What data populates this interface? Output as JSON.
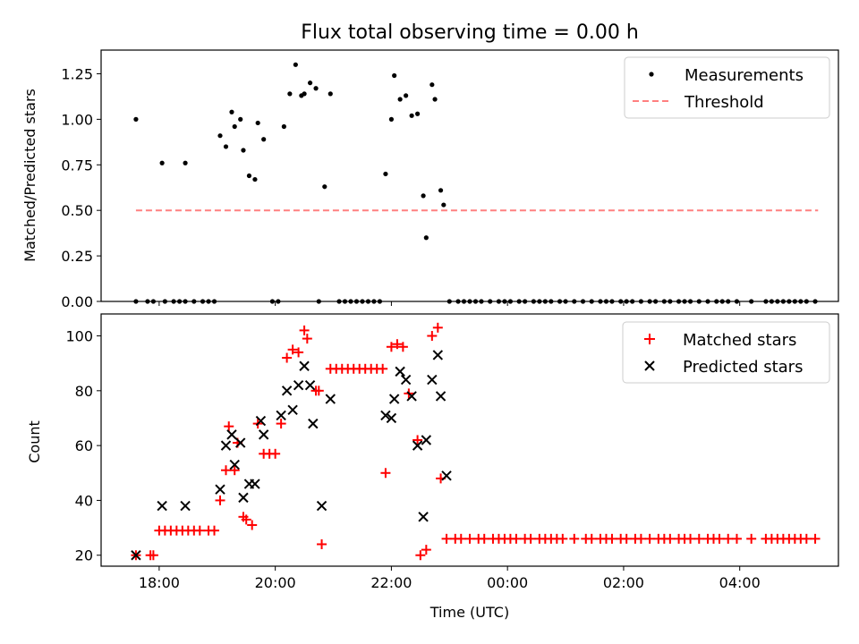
{
  "chart_data": [
    {
      "type": "scatter",
      "title": "Flux total observing time = 0.00 h",
      "xlabel": "",
      "ylabel": "Matched/Predicted stars",
      "xlim": [
        17.0,
        29.7
      ],
      "ylim": [
        0.0,
        1.38
      ],
      "yticks": [
        0.0,
        0.25,
        0.5,
        0.75,
        1.0,
        1.25
      ],
      "ytick_labels": [
        "0.00",
        "0.25",
        "0.50",
        "0.75",
        "1.00",
        "1.25"
      ],
      "series": [
        {
          "name": "Measurements",
          "color": "#000000",
          "points": [
            [
              17.6,
              1.0
            ],
            [
              17.6,
              0.0
            ],
            [
              17.8,
              0.0
            ],
            [
              17.9,
              0.0
            ],
            [
              18.05,
              0.76
            ],
            [
              18.1,
              0.0
            ],
            [
              18.25,
              0.0
            ],
            [
              18.35,
              0.0
            ],
            [
              18.45,
              0.0
            ],
            [
              18.45,
              0.76
            ],
            [
              18.6,
              0.0
            ],
            [
              18.75,
              0.0
            ],
            [
              18.85,
              0.0
            ],
            [
              18.95,
              0.0
            ],
            [
              19.05,
              0.91
            ],
            [
              19.15,
              0.85
            ],
            [
              19.25,
              1.04
            ],
            [
              19.3,
              0.96
            ],
            [
              19.4,
              1.0
            ],
            [
              19.45,
              0.83
            ],
            [
              19.55,
              0.69
            ],
            [
              19.65,
              0.67
            ],
            [
              19.7,
              0.98
            ],
            [
              19.8,
              0.89
            ],
            [
              19.95,
              0.0
            ],
            [
              20.05,
              0.0
            ],
            [
              20.15,
              0.96
            ],
            [
              20.25,
              1.14
            ],
            [
              20.35,
              1.3
            ],
            [
              20.45,
              1.13
            ],
            [
              20.5,
              1.14
            ],
            [
              20.6,
              1.2
            ],
            [
              20.7,
              1.17
            ],
            [
              20.75,
              0.0
            ],
            [
              20.85,
              0.63
            ],
            [
              20.95,
              1.14
            ],
            [
              21.1,
              0.0
            ],
            [
              21.2,
              0.0
            ],
            [
              21.3,
              0.0
            ],
            [
              21.4,
              0.0
            ],
            [
              21.5,
              0.0
            ],
            [
              21.6,
              0.0
            ],
            [
              21.7,
              0.0
            ],
            [
              21.8,
              0.0
            ],
            [
              21.9,
              0.7
            ],
            [
              22.0,
              1.0
            ],
            [
              22.05,
              1.24
            ],
            [
              22.15,
              1.11
            ],
            [
              22.25,
              1.13
            ],
            [
              22.35,
              1.02
            ],
            [
              22.45,
              1.03
            ],
            [
              22.55,
              0.58
            ],
            [
              22.6,
              0.35
            ],
            [
              22.7,
              1.19
            ],
            [
              22.75,
              1.11
            ],
            [
              22.85,
              0.61
            ],
            [
              22.9,
              0.53
            ],
            [
              23.0,
              0.0
            ],
            [
              23.15,
              0.0
            ],
            [
              23.25,
              0.0
            ],
            [
              23.35,
              0.0
            ],
            [
              23.45,
              0.0
            ],
            [
              23.55,
              0.0
            ],
            [
              23.7,
              0.0
            ],
            [
              23.85,
              0.0
            ],
            [
              23.95,
              0.0
            ],
            [
              24.05,
              0.0
            ],
            [
              24.2,
              0.0
            ],
            [
              24.3,
              0.0
            ],
            [
              24.45,
              0.0
            ],
            [
              24.55,
              0.0
            ],
            [
              24.65,
              0.0
            ],
            [
              24.75,
              0.0
            ],
            [
              24.9,
              0.0
            ],
            [
              25.0,
              0.0
            ],
            [
              25.15,
              0.0
            ],
            [
              25.3,
              0.0
            ],
            [
              25.45,
              0.0
            ],
            [
              25.6,
              0.0
            ],
            [
              25.7,
              0.0
            ],
            [
              25.8,
              0.0
            ],
            [
              25.95,
              0.0
            ],
            [
              26.05,
              0.0
            ],
            [
              26.15,
              0.0
            ],
            [
              26.3,
              0.0
            ],
            [
              26.45,
              0.0
            ],
            [
              26.55,
              0.0
            ],
            [
              26.7,
              0.0
            ],
            [
              26.8,
              0.0
            ],
            [
              26.95,
              0.0
            ],
            [
              27.05,
              0.0
            ],
            [
              27.15,
              0.0
            ],
            [
              27.3,
              0.0
            ],
            [
              27.45,
              0.0
            ],
            [
              27.6,
              0.0
            ],
            [
              27.7,
              0.0
            ],
            [
              27.8,
              0.0
            ],
            [
              27.95,
              0.0
            ],
            [
              28.2,
              0.0
            ],
            [
              28.45,
              0.0
            ],
            [
              28.55,
              0.0
            ],
            [
              28.65,
              0.0
            ],
            [
              28.75,
              0.0
            ],
            [
              28.85,
              0.0
            ],
            [
              28.95,
              0.0
            ],
            [
              29.05,
              0.0
            ],
            [
              29.15,
              0.0
            ],
            [
              29.3,
              0.0
            ]
          ]
        },
        {
          "name": "Threshold",
          "color": "#ff8080",
          "style": "dashed",
          "x": [
            17.6,
            29.35
          ],
          "y": [
            0.5,
            0.5
          ]
        }
      ],
      "legend": "top-right"
    },
    {
      "type": "scatter",
      "title": "",
      "xlabel": "Time (UTC)",
      "ylabel": "Count",
      "xlim": [
        17.0,
        29.7
      ],
      "ylim": [
        16.0,
        108.0
      ],
      "yticks": [
        20,
        40,
        60,
        80,
        100
      ],
      "ytick_labels": [
        "20",
        "40",
        "60",
        "80",
        "100"
      ],
      "xticks": [
        18,
        20,
        22,
        24,
        26,
        28
      ],
      "xtick_labels": [
        "18:00",
        "20:00",
        "22:00",
        "00:00",
        "02:00",
        "04:00"
      ],
      "series": [
        {
          "name": "Matched stars",
          "color": "#ff0000",
          "marker": "plus",
          "points": [
            [
              17.6,
              20
            ],
            [
              17.85,
              20
            ],
            [
              17.9,
              20
            ],
            [
              18.0,
              29
            ],
            [
              18.1,
              29
            ],
            [
              18.2,
              29
            ],
            [
              18.3,
              29
            ],
            [
              18.4,
              29
            ],
            [
              18.5,
              29
            ],
            [
              18.6,
              29
            ],
            [
              18.7,
              29
            ],
            [
              18.85,
              29
            ],
            [
              18.95,
              29
            ],
            [
              19.05,
              40
            ],
            [
              19.15,
              51
            ],
            [
              19.2,
              67
            ],
            [
              19.3,
              51
            ],
            [
              19.35,
              61
            ],
            [
              19.45,
              34
            ],
            [
              19.5,
              33
            ],
            [
              19.6,
              31
            ],
            [
              19.7,
              68
            ],
            [
              19.8,
              57
            ],
            [
              19.9,
              57
            ],
            [
              20.0,
              57
            ],
            [
              20.1,
              68
            ],
            [
              20.2,
              92
            ],
            [
              20.3,
              95
            ],
            [
              20.4,
              94
            ],
            [
              20.5,
              102
            ],
            [
              20.55,
              99
            ],
            [
              20.7,
              80
            ],
            [
              20.75,
              80
            ],
            [
              20.8,
              24
            ],
            [
              20.95,
              88
            ],
            [
              21.05,
              88
            ],
            [
              21.15,
              88
            ],
            [
              21.25,
              88
            ],
            [
              21.35,
              88
            ],
            [
              21.45,
              88
            ],
            [
              21.55,
              88
            ],
            [
              21.65,
              88
            ],
            [
              21.75,
              88
            ],
            [
              21.85,
              88
            ],
            [
              21.9,
              50
            ],
            [
              22.0,
              96
            ],
            [
              22.1,
              97
            ],
            [
              22.2,
              96
            ],
            [
              22.3,
              79
            ],
            [
              22.45,
              62
            ],
            [
              22.5,
              20
            ],
            [
              22.6,
              22
            ],
            [
              22.7,
              100
            ],
            [
              22.8,
              103
            ],
            [
              22.85,
              48
            ],
            [
              22.95,
              26
            ],
            [
              23.1,
              26
            ],
            [
              23.2,
              26
            ],
            [
              23.35,
              26
            ],
            [
              23.5,
              26
            ],
            [
              23.6,
              26
            ],
            [
              23.75,
              26
            ],
            [
              23.85,
              26
            ],
            [
              23.95,
              26
            ],
            [
              24.05,
              26
            ],
            [
              24.15,
              26
            ],
            [
              24.3,
              26
            ],
            [
              24.4,
              26
            ],
            [
              24.55,
              26
            ],
            [
              24.65,
              26
            ],
            [
              24.75,
              26
            ],
            [
              24.85,
              26
            ],
            [
              24.95,
              26
            ],
            [
              25.15,
              26
            ],
            [
              25.35,
              26
            ],
            [
              25.45,
              26
            ],
            [
              25.6,
              26
            ],
            [
              25.7,
              26
            ],
            [
              25.8,
              26
            ],
            [
              25.95,
              26
            ],
            [
              26.05,
              26
            ],
            [
              26.2,
              26
            ],
            [
              26.3,
              26
            ],
            [
              26.45,
              26
            ],
            [
              26.6,
              26
            ],
            [
              26.7,
              26
            ],
            [
              26.8,
              26
            ],
            [
              26.95,
              26
            ],
            [
              27.05,
              26
            ],
            [
              27.15,
              26
            ],
            [
              27.3,
              26
            ],
            [
              27.45,
              26
            ],
            [
              27.55,
              26
            ],
            [
              27.65,
              26
            ],
            [
              27.8,
              26
            ],
            [
              27.95,
              26
            ],
            [
              28.2,
              26
            ],
            [
              28.45,
              26
            ],
            [
              28.55,
              26
            ],
            [
              28.65,
              26
            ],
            [
              28.75,
              26
            ],
            [
              28.85,
              26
            ],
            [
              28.95,
              26
            ],
            [
              29.05,
              26
            ],
            [
              29.15,
              26
            ],
            [
              29.3,
              26
            ]
          ]
        },
        {
          "name": "Predicted stars",
          "color": "#000000",
          "marker": "x",
          "points": [
            [
              17.6,
              20
            ],
            [
              18.05,
              38
            ],
            [
              18.45,
              38
            ],
            [
              19.05,
              44
            ],
            [
              19.15,
              60
            ],
            [
              19.25,
              64
            ],
            [
              19.3,
              53
            ],
            [
              19.4,
              61
            ],
            [
              19.45,
              41
            ],
            [
              19.55,
              46
            ],
            [
              19.65,
              46
            ],
            [
              19.75,
              69
            ],
            [
              19.8,
              64
            ],
            [
              20.1,
              71
            ],
            [
              20.2,
              80
            ],
            [
              20.3,
              73
            ],
            [
              20.4,
              82
            ],
            [
              20.5,
              89
            ],
            [
              20.6,
              82
            ],
            [
              20.65,
              68
            ],
            [
              20.8,
              38
            ],
            [
              20.95,
              77
            ],
            [
              21.9,
              71
            ],
            [
              22.0,
              70
            ],
            [
              22.05,
              77
            ],
            [
              22.15,
              87
            ],
            [
              22.25,
              84
            ],
            [
              22.35,
              78
            ],
            [
              22.45,
              60
            ],
            [
              22.55,
              34
            ],
            [
              22.6,
              62
            ],
            [
              22.7,
              84
            ],
            [
              22.8,
              93
            ],
            [
              22.85,
              78
            ],
            [
              22.95,
              49
            ]
          ]
        }
      ],
      "legend": "top-right"
    }
  ]
}
